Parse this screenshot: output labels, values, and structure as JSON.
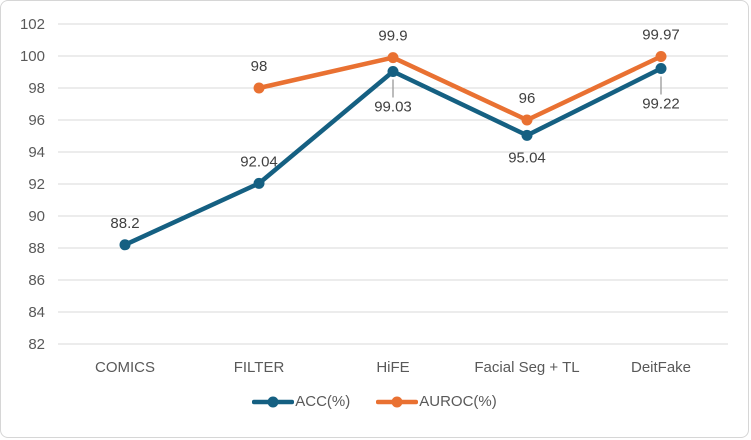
{
  "chart_data": {
    "type": "line",
    "title": "",
    "xlabel": "",
    "ylabel": "",
    "categories": [
      "COMICS",
      "FILTER",
      "HiFE",
      "Facial Seg + TL",
      "DeitFake"
    ],
    "series": [
      {
        "name": "ACC(%)",
        "color": "#156082",
        "values": [
          88.2,
          92.04,
          99.03,
          95.04,
          99.22
        ],
        "labels": [
          "88.2",
          "92.04",
          "99.03",
          "95.04",
          "99.22"
        ],
        "label_positions": [
          "above",
          "above",
          "below",
          "below",
          "below"
        ],
        "leader_lines": [
          false,
          false,
          true,
          false,
          true
        ]
      },
      {
        "name": "AUROC(%)",
        "color": "#E97132",
        "values": [
          null,
          98,
          99.9,
          96,
          99.97
        ],
        "labels": [
          "",
          "98",
          "99.9",
          "96",
          "99.97"
        ],
        "label_positions": [
          "above",
          "above",
          "above",
          "above",
          "above"
        ],
        "leader_lines": [
          false,
          false,
          false,
          false,
          false
        ]
      }
    ],
    "ylim": [
      82,
      102
    ],
    "ytick_step": 2,
    "ytick_labels": [
      "82",
      "84",
      "86",
      "88",
      "90",
      "92",
      "94",
      "96",
      "98",
      "100",
      "102"
    ],
    "grid": true,
    "legend_position": "bottom"
  },
  "style": {
    "grid_color": "#d9d9d9",
    "axis_label_color": "#595959",
    "data_label_color": "#404040",
    "leader_line_color": "#a6a6a6",
    "background": "#ffffff",
    "border_color": "#d6d6d6"
  }
}
